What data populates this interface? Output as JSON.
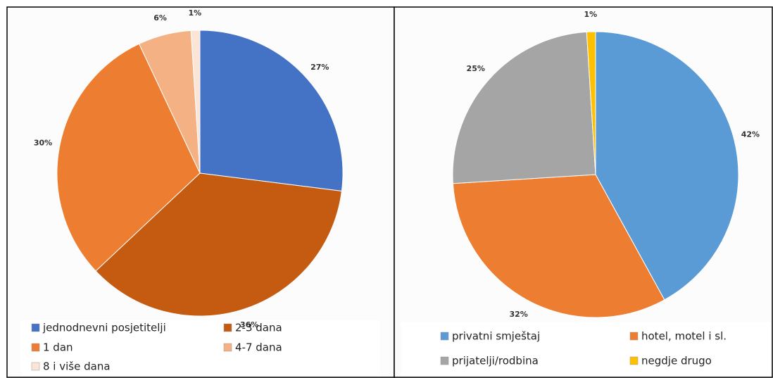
{
  "chart_data": [
    {
      "type": "pie",
      "categories": [
        "jednodnevni posjetitelji",
        "2-3 dana",
        "1 dan",
        "4-7 dana",
        "8 i više dana"
      ],
      "values": [
        27,
        36,
        30,
        6,
        1
      ],
      "value_labels": [
        "27%",
        "36%",
        "30%",
        "6%",
        "1%"
      ],
      "colors": [
        "#4472c4",
        "#c55a11",
        "#ed7d31",
        "#f4b183",
        "#fbe5d6"
      ]
    },
    {
      "type": "pie",
      "categories": [
        "privatni smještaj",
        "hotel, motel i sl.",
        "prijatelji/rodbina",
        "negdje drugo"
      ],
      "values": [
        42,
        32,
        25,
        1
      ],
      "value_labels": [
        "42%",
        "32%",
        "25%",
        "1%"
      ],
      "colors": [
        "#5b9bd5",
        "#ed7d31",
        "#a5a5a5",
        "#ffc000"
      ]
    }
  ]
}
